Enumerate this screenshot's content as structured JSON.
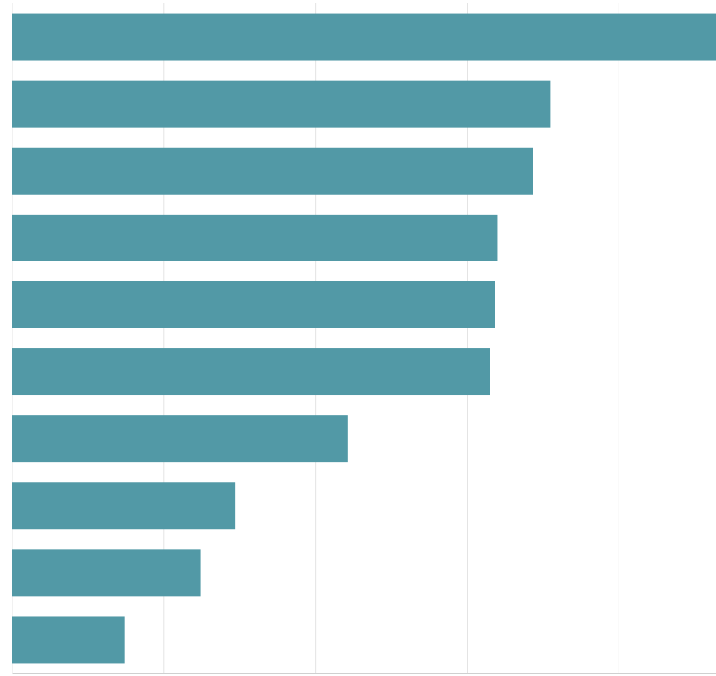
{
  "chart_data": {
    "type": "bar",
    "orientation": "horizontal",
    "categories": [
      null,
      null,
      null,
      null,
      null,
      null,
      null,
      null,
      null,
      null
    ],
    "values": [
      4.64,
      3.55,
      3.43,
      3.2,
      3.18,
      3.15,
      2.21,
      1.47,
      1.24,
      0.74
    ],
    "color": "#5299a6",
    "xlim": [
      0,
      4.64
    ],
    "xticks": [
      0,
      1,
      2,
      3,
      4
    ],
    "grid": true,
    "tick_labels": false
  }
}
